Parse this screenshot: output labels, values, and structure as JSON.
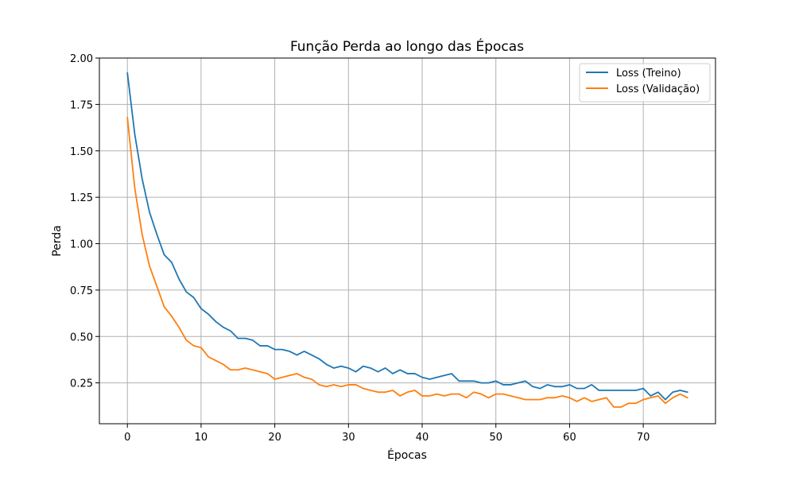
{
  "chart_data": {
    "type": "line",
    "title": "Função Perda ao longo das Épocas",
    "xlabel": "Épocas",
    "ylabel": "Perda",
    "xlim": [
      -3.8,
      79.8
    ],
    "ylim": [
      0.03,
      2.0
    ],
    "x_ticks": [
      0,
      10,
      20,
      30,
      40,
      50,
      60,
      70
    ],
    "y_ticks": [
      0.25,
      0.5,
      0.75,
      1.0,
      1.25,
      1.5,
      1.75,
      2.0
    ],
    "x_tick_labels": [
      "0",
      "10",
      "20",
      "30",
      "40",
      "50",
      "60",
      "70"
    ],
    "y_tick_labels": [
      "0.25",
      "0.50",
      "0.75",
      "1.00",
      "1.25",
      "1.50",
      "1.75",
      "2.00"
    ],
    "grid": true,
    "legend_position": "top-right",
    "x": [
      0,
      1,
      2,
      3,
      4,
      5,
      6,
      7,
      8,
      9,
      10,
      11,
      12,
      13,
      14,
      15,
      16,
      17,
      18,
      19,
      20,
      21,
      22,
      23,
      24,
      25,
      26,
      27,
      28,
      29,
      30,
      31,
      32,
      33,
      34,
      35,
      36,
      37,
      38,
      39,
      40,
      41,
      42,
      43,
      44,
      45,
      46,
      47,
      48,
      49,
      50,
      51,
      52,
      53,
      54,
      55,
      56,
      57,
      58,
      59,
      60,
      61,
      62,
      63,
      64,
      65,
      66,
      67,
      68,
      69,
      70,
      71,
      72,
      73,
      74,
      75,
      76
    ],
    "series": [
      {
        "name": "Loss (Treino)",
        "color": "#1f77b4",
        "values": [
          1.92,
          1.59,
          1.35,
          1.17,
          1.05,
          0.94,
          0.9,
          0.81,
          0.74,
          0.71,
          0.65,
          0.62,
          0.58,
          0.55,
          0.53,
          0.49,
          0.49,
          0.48,
          0.45,
          0.45,
          0.43,
          0.43,
          0.42,
          0.4,
          0.42,
          0.4,
          0.38,
          0.35,
          0.33,
          0.34,
          0.33,
          0.31,
          0.34,
          0.33,
          0.31,
          0.33,
          0.3,
          0.32,
          0.3,
          0.3,
          0.28,
          0.27,
          0.28,
          0.29,
          0.3,
          0.26,
          0.26,
          0.26,
          0.25,
          0.25,
          0.26,
          0.24,
          0.24,
          0.25,
          0.26,
          0.23,
          0.22,
          0.24,
          0.23,
          0.23,
          0.24,
          0.22,
          0.22,
          0.24,
          0.21,
          0.21,
          0.21,
          0.21,
          0.21,
          0.21,
          0.22,
          0.18,
          0.2,
          0.16,
          0.2,
          0.21,
          0.2
        ]
      },
      {
        "name": "Loss (Validação)",
        "color": "#ff7f0e",
        "values": [
          1.68,
          1.3,
          1.05,
          0.88,
          0.77,
          0.66,
          0.61,
          0.55,
          0.48,
          0.45,
          0.44,
          0.39,
          0.37,
          0.35,
          0.32,
          0.32,
          0.33,
          0.32,
          0.31,
          0.3,
          0.27,
          0.28,
          0.29,
          0.3,
          0.28,
          0.27,
          0.24,
          0.23,
          0.24,
          0.23,
          0.24,
          0.24,
          0.22,
          0.21,
          0.2,
          0.2,
          0.21,
          0.18,
          0.2,
          0.21,
          0.18,
          0.18,
          0.19,
          0.18,
          0.19,
          0.19,
          0.17,
          0.2,
          0.19,
          0.17,
          0.19,
          0.19,
          0.18,
          0.17,
          0.16,
          0.16,
          0.16,
          0.17,
          0.17,
          0.18,
          0.17,
          0.15,
          0.17,
          0.15,
          0.16,
          0.17,
          0.12,
          0.12,
          0.14,
          0.14,
          0.16,
          0.17,
          0.18,
          0.14,
          0.17,
          0.19,
          0.17
        ]
      }
    ]
  }
}
